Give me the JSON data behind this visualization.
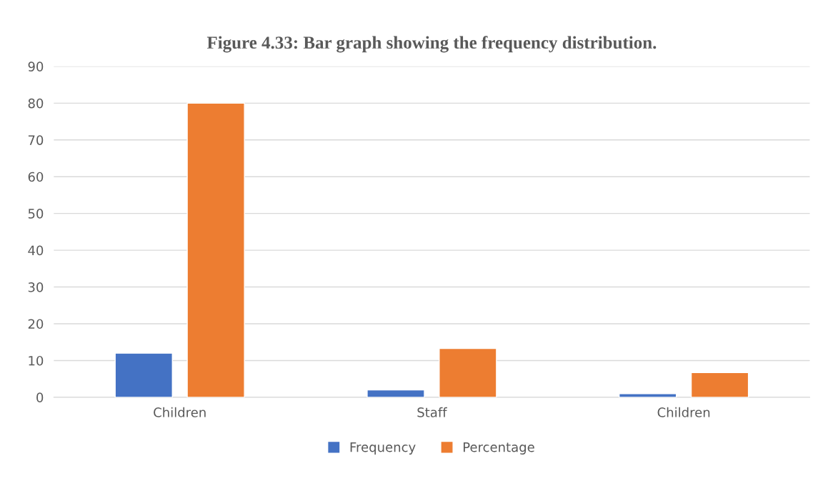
{
  "chart_data": {
    "type": "bar",
    "title": "Figure 4.33: Bar graph showing the frequency distribution.",
    "categories": [
      "Children",
      "Staff",
      "Children"
    ],
    "series": [
      {
        "name": "Frequency",
        "color": "#4472c4",
        "values": [
          12,
          2,
          1
        ]
      },
      {
        "name": "Percentage",
        "color": "#ed7d31",
        "values": [
          80,
          13.3,
          6.7
        ]
      }
    ],
    "ylim": [
      0,
      90
    ],
    "yticks": [
      0,
      10,
      20,
      30,
      40,
      50,
      60,
      70,
      80,
      90
    ],
    "grid": "y",
    "legend": "bottom"
  }
}
